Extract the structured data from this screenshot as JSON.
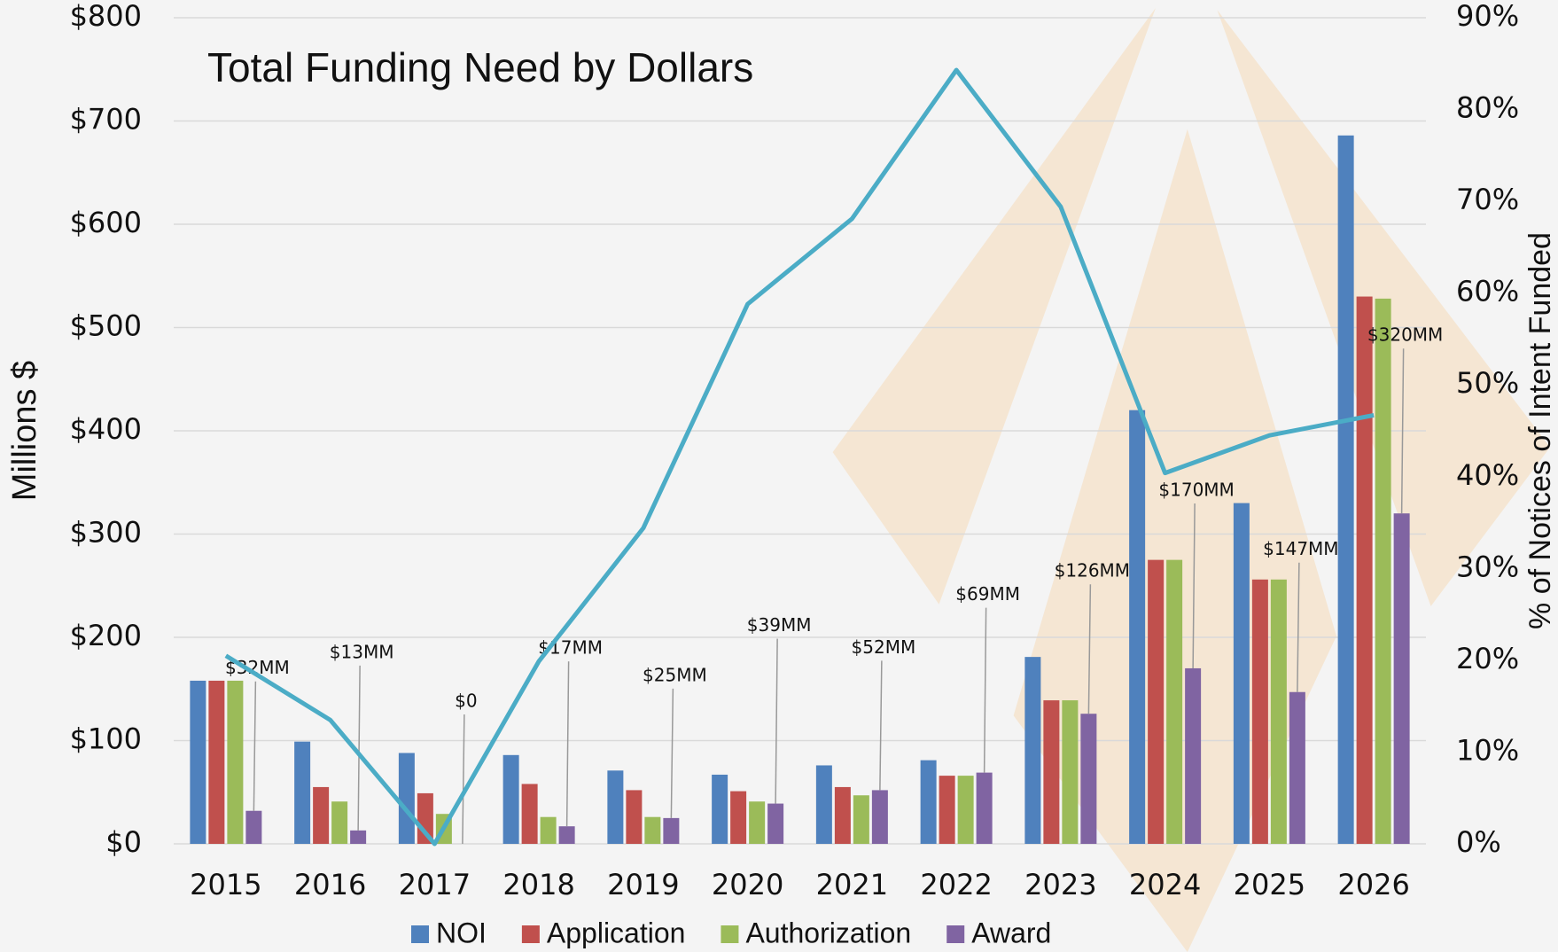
{
  "chart_data": {
    "type": "bar",
    "title": "Total Funding Need by Dollars",
    "y_label": "Millions $",
    "y2_label": "% of Notices of Intent Funded",
    "categories": [
      "2015",
      "2016",
      "2017",
      "2018",
      "2019",
      "2020",
      "2021",
      "2022",
      "2023",
      "2024",
      "2025",
      "2026"
    ],
    "series": [
      {
        "name": "NOI",
        "color": "#4f81bd",
        "values": [
          158,
          99,
          88,
          86,
          71,
          67,
          76,
          81,
          181,
          420,
          330,
          686
        ]
      },
      {
        "name": "Application",
        "color": "#c0504d",
        "values": [
          158,
          55,
          49,
          58,
          52,
          51,
          55,
          66,
          139,
          275,
          256,
          530
        ]
      },
      {
        "name": "Authorization",
        "color": "#9bbb59",
        "values": [
          158,
          41,
          29,
          26,
          26,
          41,
          47,
          66,
          139,
          275,
          256,
          528
        ]
      },
      {
        "name": "Award",
        "color": "#8064a2",
        "values": [
          32,
          13,
          0,
          17,
          25,
          39,
          52,
          69,
          126,
          170,
          147,
          320
        ],
        "value_labels": [
          "$32MM",
          "$13MM",
          "$0",
          "$17MM",
          "$25MM",
          "$39MM",
          "$52MM",
          "$69MM",
          "$126MM",
          "$170MM",
          "$147MM",
          "$320MM"
        ]
      },
      {
        "name": "% of Notices of Intent Funded",
        "type": "line",
        "axis": "y2",
        "color": "#4bacc6",
        "values": [
          20.5,
          13.5,
          0,
          19.9,
          34.4,
          58.8,
          68.1,
          84.3,
          69.4,
          40.4,
          44.5,
          46.7
        ]
      }
    ],
    "ylim": [
      0,
      800
    ],
    "yticks": [
      {
        "value": 0,
        "label": "$0"
      },
      {
        "value": 100,
        "label": "$100"
      },
      {
        "value": 200,
        "label": "$200"
      },
      {
        "value": 300,
        "label": "$300"
      },
      {
        "value": 400,
        "label": "$400"
      },
      {
        "value": 500,
        "label": "$500"
      },
      {
        "value": 600,
        "label": "$600"
      },
      {
        "value": 700,
        "label": "$700"
      },
      {
        "value": 800,
        "label": "$800"
      }
    ],
    "y2lim": [
      0,
      90
    ],
    "y2ticks": [
      {
        "value": 0,
        "label": "0%"
      },
      {
        "value": 10,
        "label": "10%"
      },
      {
        "value": 20,
        "label": "20%"
      },
      {
        "value": 30,
        "label": "30%"
      },
      {
        "value": 40,
        "label": "40%"
      },
      {
        "value": 50,
        "label": "50%"
      },
      {
        "value": 60,
        "label": "60%"
      },
      {
        "value": 70,
        "label": "70%"
      },
      {
        "value": 80,
        "label": "80%"
      },
      {
        "value": 90,
        "label": "90%"
      }
    ],
    "grid": true,
    "legend": "bottom"
  }
}
